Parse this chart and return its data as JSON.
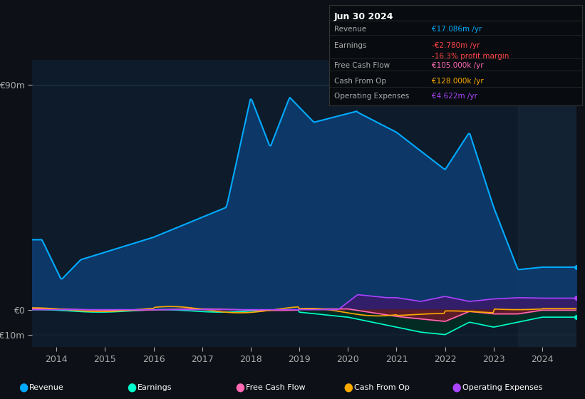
{
  "bg_color": "#0d1117",
  "plot_bg_color": "#0d1b2a",
  "grid_color": "#1e3a4a",
  "title_date": "Jun 30 2024",
  "info_box": {
    "Revenue": {
      "value": "€17.086m /yr",
      "color": "#00aaff"
    },
    "Earnings": {
      "value": "-€2.780m /yr",
      "color": "#ff4444"
    },
    "profit_margin": {
      "value": "-16.3% profit margin",
      "color": "#ff4444"
    },
    "Free Cash Flow": {
      "value": "€105.000k /yr",
      "color": "#ff69b4"
    },
    "Cash From Op": {
      "value": "€128.000k /yr",
      "color": "#ffaa00"
    },
    "Operating Expenses": {
      "value": "€4.622m /yr",
      "color": "#aa44ff"
    }
  },
  "ylim": [
    -15,
    100
  ],
  "yticks": [
    -10,
    0,
    90
  ],
  "ytick_labels": [
    "-€10m",
    "€0",
    "€90m"
  ],
  "xlim_start": 2013.5,
  "xlim_end": 2024.7,
  "xticks": [
    2014,
    2015,
    2016,
    2017,
    2018,
    2019,
    2020,
    2021,
    2022,
    2023,
    2024
  ],
  "legend": [
    {
      "label": "Revenue",
      "color": "#00aaff"
    },
    {
      "label": "Earnings",
      "color": "#00ffcc"
    },
    {
      "label": "Free Cash Flow",
      "color": "#ff69b4"
    },
    {
      "label": "Cash From Op",
      "color": "#ffaa00"
    },
    {
      "label": "Operating Expenses",
      "color": "#aa44ff"
    }
  ],
  "shaded_region_start": 2023.5,
  "shaded_region_color": "#1a2a3a",
  "revenue_color": "#00aaff",
  "revenue_fill_color": "#0d3b6e",
  "earnings_color": "#00ffcc",
  "earnings_fill_color": "#003322",
  "fcf_color": "#ff69b4",
  "fcf_fill_color": "#6b1a2a",
  "cashfromop_color": "#ffaa00",
  "opex_color": "#aa44ff",
  "opex_fill_color": "#3a1a6b"
}
